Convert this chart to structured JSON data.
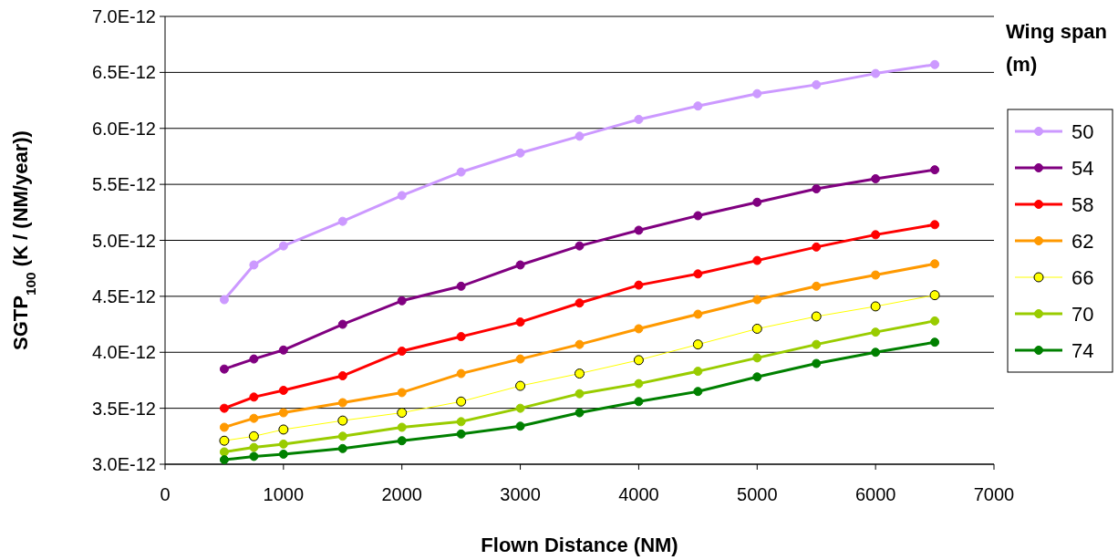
{
  "chart_data": {
    "type": "line",
    "xlabel": "Flown Distance (NM)",
    "ylabel": "SGTP$_{100}$ (K / (NM/year))",
    "legend_title": "Wing span (m)",
    "legend": "right",
    "marker": "circle",
    "line_style": "solid",
    "grid": "y",
    "x": [
      500,
      750,
      1000,
      1500,
      2000,
      2500,
      3000,
      3500,
      4000,
      4500,
      5000,
      5500,
      6000,
      6500
    ],
    "xlim": [
      0,
      7000
    ],
    "xticks": [
      0,
      1000,
      2000,
      3000,
      4000,
      5000,
      6000,
      7000
    ],
    "ylim": [
      3e-12,
      7e-12
    ],
    "yticks": [
      {
        "value": 3e-12,
        "label": "3.0E-12"
      },
      {
        "value": 3.5e-12,
        "label": "3.5E-12"
      },
      {
        "value": 4e-12,
        "label": "4.0E-12"
      },
      {
        "value": 4.5e-12,
        "label": "4.5E-12"
      },
      {
        "value": 5e-12,
        "label": "5.0E-12"
      },
      {
        "value": 5.5e-12,
        "label": "5.5E-12"
      },
      {
        "value": 6e-12,
        "label": "6.0E-12"
      },
      {
        "value": 6.5e-12,
        "label": "6.5E-12"
      },
      {
        "value": 7e-12,
        "label": "7.0E-12"
      }
    ],
    "series": [
      {
        "name": "50",
        "color": "#cc99ff",
        "values": [
          4.47e-12,
          4.78e-12,
          4.95e-12,
          5.17e-12,
          5.4e-12,
          5.61e-12,
          5.78e-12,
          5.93e-12,
          6.08e-12,
          6.2e-12,
          6.31e-12,
          6.39e-12,
          6.49e-12,
          6.57e-12
        ]
      },
      {
        "name": "54",
        "color": "#800080",
        "values": [
          3.85e-12,
          3.94e-12,
          4.02e-12,
          4.25e-12,
          4.46e-12,
          4.59e-12,
          4.78e-12,
          4.95e-12,
          5.09e-12,
          5.22e-12,
          5.34e-12,
          5.46e-12,
          5.55e-12,
          5.63e-12
        ]
      },
      {
        "name": "58",
        "color": "#ff0000",
        "values": [
          3.5e-12,
          3.6e-12,
          3.66e-12,
          3.79e-12,
          4.01e-12,
          4.14e-12,
          4.27e-12,
          4.44e-12,
          4.6e-12,
          4.7e-12,
          4.82e-12,
          4.94e-12,
          5.05e-12,
          5.14e-12
        ]
      },
      {
        "name": "62",
        "color": "#ff9900",
        "values": [
          3.33e-12,
          3.41e-12,
          3.46e-12,
          3.55e-12,
          3.64e-12,
          3.81e-12,
          3.94e-12,
          4.07e-12,
          4.21e-12,
          4.34e-12,
          4.47e-12,
          4.59e-12,
          4.69e-12,
          4.79e-12
        ]
      },
      {
        "name": "66",
        "color": "#ffff00",
        "values": [
          3.21e-12,
          3.25e-12,
          3.31e-12,
          3.39e-12,
          3.46e-12,
          3.56e-12,
          3.7e-12,
          3.81e-12,
          3.93e-12,
          4.07e-12,
          4.21e-12,
          4.32e-12,
          4.41e-12,
          4.51e-12
        ]
      },
      {
        "name": "70",
        "color": "#99cc00",
        "values": [
          3.11e-12,
          3.15e-12,
          3.18e-12,
          3.25e-12,
          3.33e-12,
          3.38e-12,
          3.5e-12,
          3.63e-12,
          3.72e-12,
          3.83e-12,
          3.95e-12,
          4.07e-12,
          4.18e-12,
          4.28e-12
        ]
      },
      {
        "name": "74",
        "color": "#008000",
        "values": [
          3.04e-12,
          3.07e-12,
          3.09e-12,
          3.14e-12,
          3.21e-12,
          3.27e-12,
          3.34e-12,
          3.46e-12,
          3.56e-12,
          3.65e-12,
          3.78e-12,
          3.9e-12,
          4e-12,
          4.09e-12
        ]
      }
    ]
  }
}
